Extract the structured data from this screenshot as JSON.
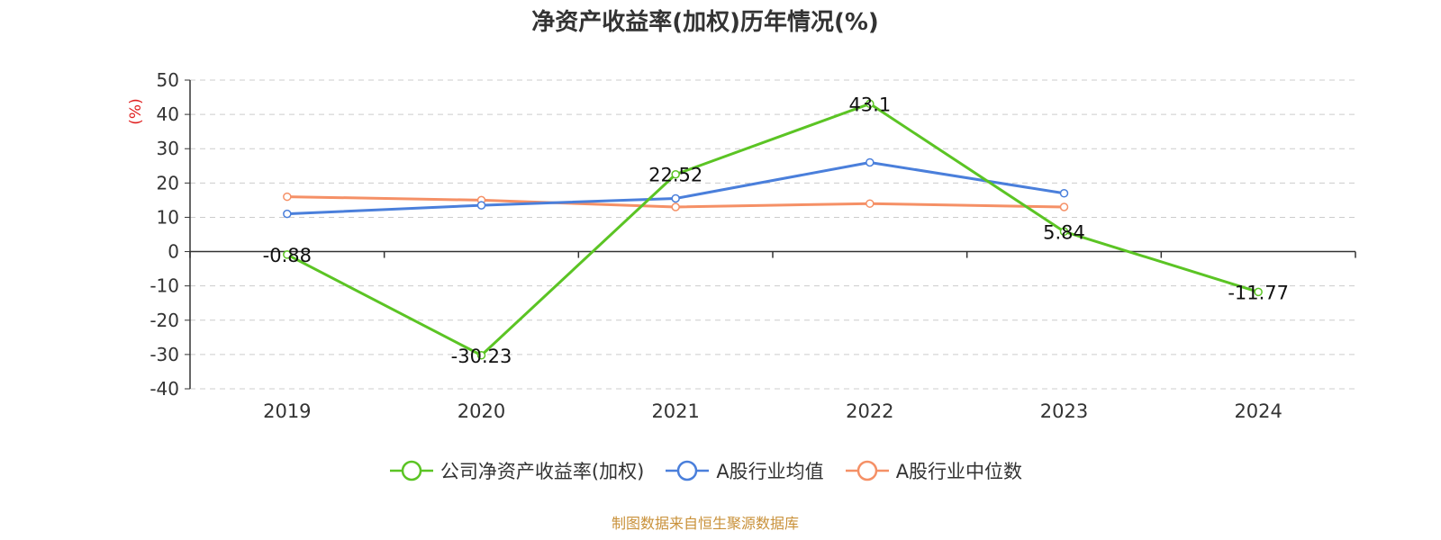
{
  "title": "净资产收益率(加权)历年情况(%)",
  "source_note": "制图数据来自恒生聚源数据库",
  "colors": {
    "company": "#5bc424",
    "industry_mean": "#4a7fdb",
    "industry_median": "#f59066",
    "axis": "#333333",
    "grid": "#cccccc",
    "ylabel": "#e02020"
  },
  "chart_data": {
    "type": "line",
    "title": "净资产收益率(加权)历年情况(%)",
    "ylabel": "(%)",
    "xlabel": "",
    "categories": [
      "2019",
      "2020",
      "2021",
      "2022",
      "2023",
      "2024"
    ],
    "ylim": [
      -40,
      50
    ],
    "yticks": [
      50,
      40,
      30,
      20,
      10,
      0,
      -10,
      -20,
      -30,
      -40
    ],
    "grid": true,
    "legend_position": "bottom",
    "series": [
      {
        "name": "公司净资产收益率(加权)",
        "color_key": "company",
        "values": [
          -0.88,
          -30.23,
          22.52,
          43.1,
          5.84,
          -11.77
        ],
        "data_labels": [
          "-0.88",
          "-30.23",
          "22.52",
          "43.1",
          "5.84",
          "-11.77"
        ]
      },
      {
        "name": "A股行业均值",
        "color_key": "industry_mean",
        "values": [
          11,
          13.5,
          15.5,
          26,
          17,
          null
        ]
      },
      {
        "name": "A股行业中位数",
        "color_key": "industry_median",
        "values": [
          16,
          15,
          13,
          14,
          13,
          null
        ]
      }
    ]
  }
}
